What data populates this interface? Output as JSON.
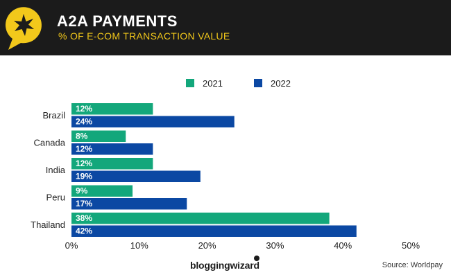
{
  "header": {
    "title": "A2A PAYMENTS",
    "subtitle": "% OF E-COM TRANSACTION VALUE"
  },
  "colors": {
    "header_bg": "#1b1b1b",
    "accent": "#f2c81b",
    "series_2021": "#13a77b",
    "series_2022": "#0b48a3"
  },
  "icons": {
    "badge": "star-speech-bubble-icon",
    "brand": "wizard-dot-icon"
  },
  "chart_data": {
    "type": "bar",
    "orientation": "horizontal",
    "categories": [
      "Brazil",
      "Canada",
      "India",
      "Peru",
      "Thailand"
    ],
    "series": [
      {
        "name": "2021",
        "values": [
          12,
          8,
          12,
          9,
          38
        ],
        "labels": [
          "12%",
          "8%",
          "12%",
          "9%",
          "38%"
        ]
      },
      {
        "name": "2022",
        "values": [
          24,
          12,
          19,
          17,
          42
        ],
        "labels": [
          "24%",
          "12%",
          "19%",
          "17%",
          "42%"
        ]
      }
    ],
    "xlim": [
      0,
      50
    ],
    "ticks": [
      0,
      10,
      20,
      30,
      40,
      50
    ],
    "tick_labels": [
      "0%",
      "10%",
      "20%",
      "30%",
      "40%",
      "50%"
    ],
    "legend_position": "top",
    "grid": false
  },
  "footer": {
    "brand": "bloggingwizard",
    "source": "Source: Worldpay"
  }
}
